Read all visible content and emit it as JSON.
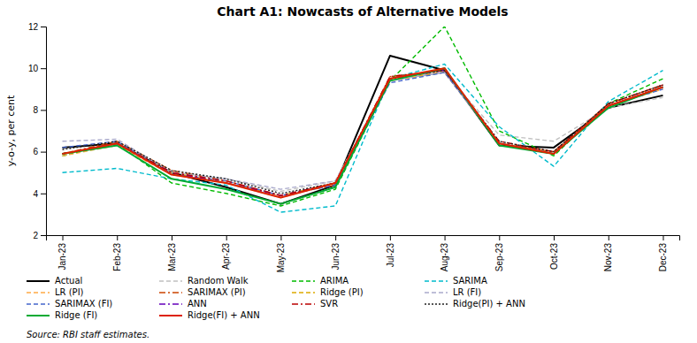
{
  "chart_data": {
    "type": "line",
    "title": "Chart A1: Nowcasts of Alternative Models",
    "y_label": "y-o-y, per cent",
    "source": "Source: RBI staff estimates.",
    "categories": [
      "Jan-23",
      "Feb-23",
      "Mar-23",
      "Apr-23",
      "May-23",
      "Jun-23",
      "Jul-23",
      "Aug-23",
      "Sep-23",
      "Oct-23",
      "Nov-23",
      "Dec-23"
    ],
    "ylim": [
      2,
      12
    ],
    "yticks": [
      2,
      4,
      6,
      8,
      10,
      12
    ],
    "grid": false,
    "legend": "bottom",
    "series": [
      {
        "name": "Actual",
        "color": "#000000",
        "line_style": "solid",
        "values": [
          6.2,
          6.4,
          5.0,
          4.3,
          3.5,
          4.4,
          10.6,
          9.9,
          6.3,
          6.2,
          8.1,
          8.7
        ]
      },
      {
        "name": "Random Walk",
        "color": "#c0c0c0",
        "line_style": "dashed",
        "values": [
          5.9,
          6.3,
          5.0,
          4.7,
          4.1,
          4.6,
          9.5,
          9.8,
          6.8,
          6.5,
          8.1,
          8.6
        ]
      },
      {
        "name": "ARIMA",
        "color": "#00bb00",
        "line_style": "dashed",
        "values": [
          5.8,
          6.4,
          4.5,
          4.0,
          3.4,
          4.2,
          9.4,
          12.0,
          7.0,
          5.8,
          8.3,
          9.5
        ]
      },
      {
        "name": "SARIMA",
        "color": "#00bbcc",
        "line_style": "dashed",
        "values": [
          5.0,
          5.2,
          4.7,
          4.4,
          3.1,
          3.4,
          9.5,
          10.2,
          7.2,
          5.3,
          8.4,
          9.9
        ]
      },
      {
        "name": "LR (PI)",
        "color": "#ffaa44",
        "line_style": "dashed",
        "values": [
          5.8,
          6.3,
          4.9,
          4.5,
          3.8,
          4.5,
          9.4,
          9.8,
          6.4,
          6.0,
          8.2,
          9.0
        ]
      },
      {
        "name": "SARIMAX (PI)",
        "color": "#cc4400",
        "line_style": "dashdot",
        "values": [
          5.9,
          6.5,
          5.1,
          4.6,
          3.9,
          4.4,
          9.6,
          9.9,
          6.4,
          6.0,
          8.3,
          9.2
        ]
      },
      {
        "name": "Ridge (PI)",
        "color": "#ddaa00",
        "line_style": "dashed",
        "values": [
          5.9,
          6.4,
          5.0,
          4.5,
          3.9,
          4.5,
          9.5,
          9.8,
          6.4,
          5.9,
          8.2,
          9.1
        ]
      },
      {
        "name": "LR (FI)",
        "color": "#aaaacc",
        "line_style": "dashed",
        "values": [
          6.5,
          6.6,
          5.0,
          4.7,
          4.2,
          4.6,
          9.4,
          9.8,
          6.4,
          5.9,
          8.2,
          9.1
        ]
      },
      {
        "name": "SARIMAX (FI)",
        "color": "#4466cc",
        "line_style": "dashed",
        "values": [
          6.2,
          6.5,
          4.9,
          4.6,
          3.9,
          4.4,
          9.3,
          9.8,
          6.4,
          5.9,
          8.2,
          9.0
        ]
      },
      {
        "name": "ANN",
        "color": "#6600bb",
        "line_style": "dashdot",
        "values": [
          5.9,
          6.4,
          5.0,
          4.5,
          3.9,
          4.5,
          9.5,
          9.9,
          6.4,
          5.9,
          8.2,
          9.1
        ]
      },
      {
        "name": "SVR",
        "color": "#bb0000",
        "line_style": "dashdot",
        "values": [
          5.9,
          6.4,
          5.0,
          4.6,
          3.9,
          4.5,
          9.6,
          9.9,
          6.5,
          6.0,
          8.3,
          9.2
        ]
      },
      {
        "name": "Ridge(PI) + ANN",
        "color": "#222222",
        "line_style": "dotted",
        "values": [
          6.1,
          6.5,
          5.1,
          4.7,
          4.0,
          4.5,
          9.5,
          9.9,
          6.5,
          6.0,
          8.3,
          9.2
        ]
      },
      {
        "name": "Ridge (FI)",
        "color": "#00aa33",
        "line_style": "solid",
        "values": [
          5.9,
          6.3,
          4.7,
          4.2,
          3.5,
          4.3,
          9.4,
          10.0,
          6.3,
          5.9,
          8.1,
          9.1
        ]
      },
      {
        "name": "Ridge(FI) + ANN",
        "color": "#dd2200",
        "line_style": "solid",
        "values": [
          5.9,
          6.4,
          4.9,
          4.5,
          3.8,
          4.5,
          9.5,
          10.0,
          6.4,
          5.9,
          8.2,
          9.1
        ]
      }
    ]
  }
}
